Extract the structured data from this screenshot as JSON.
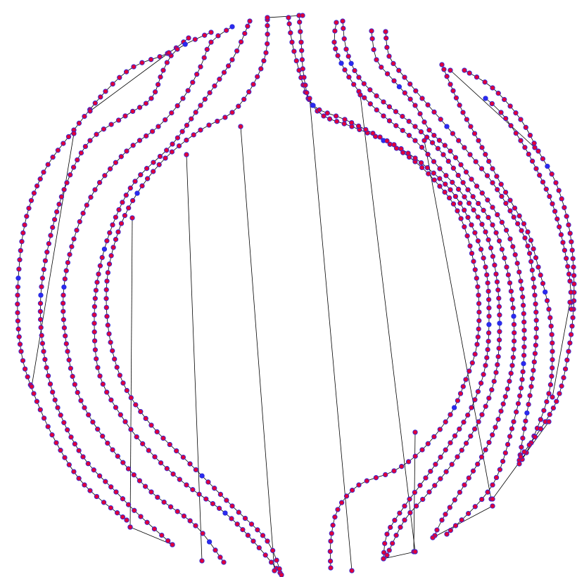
{
  "graph": {
    "description_shown": "",
    "colors": {
      "edge": "#000000",
      "node_fill": "#e0003a",
      "node_stroke": "#2a2ad8",
      "node_alt_fill": "#2a2af0",
      "background": "#ffffff"
    }
  }
}
